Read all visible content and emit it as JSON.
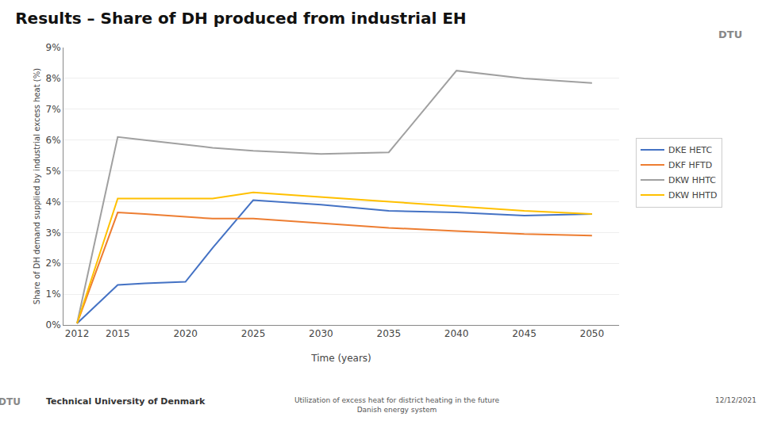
{
  "chart_data": {
    "type": "line",
    "title": "Results – Share of DH produced from industrial EH",
    "x_label": "Time (years)",
    "y_label": "Share of DH demand supplied by industrial excess heat (%)",
    "x": [
      2012,
      2015,
      2017,
      2020,
      2022,
      2025,
      2030,
      2035,
      2040,
      2045,
      2050
    ],
    "series": [
      {
        "name": "DKE HETC",
        "color": "#4472C4",
        "values": [
          0.05,
          1.3,
          1.35,
          1.4,
          2.5,
          4.05,
          3.9,
          3.7,
          3.65,
          3.55,
          3.6
        ]
      },
      {
        "name": "DKF HFTD",
        "color": "#ED7D31",
        "values": [
          0.05,
          3.65,
          3.6,
          3.5,
          3.45,
          3.45,
          3.3,
          3.15,
          3.05,
          2.95,
          2.9
        ]
      },
      {
        "name": "DKW HHTC",
        "color": "#A0A0A0",
        "values": [
          0.05,
          6.1,
          6.0,
          5.85,
          5.75,
          5.65,
          5.55,
          5.6,
          8.25,
          8.0,
          7.85
        ]
      },
      {
        "name": "DKW HHTD",
        "color": "#FFC000",
        "values": [
          0.05,
          4.1,
          4.1,
          4.1,
          4.1,
          4.3,
          4.15,
          4.0,
          3.85,
          3.7,
          3.6
        ]
      }
    ],
    "xlim": [
      2011,
      2052
    ],
    "xticks": [
      2012,
      2015,
      2020,
      2025,
      2030,
      2035,
      2040,
      2045,
      2050
    ],
    "ylim": [
      0,
      9
    ],
    "yticks": [
      {
        "value": 0,
        "label": "0%"
      },
      {
        "value": 1,
        "label": "1%"
      },
      {
        "value": 2,
        "label": "2%"
      },
      {
        "value": 3,
        "label": "3%"
      },
      {
        "value": 4,
        "label": "4%"
      },
      {
        "value": 5,
        "label": "5%"
      },
      {
        "value": 6,
        "label": "6%"
      },
      {
        "value": 7,
        "label": "7%"
      },
      {
        "value": 8,
        "label": "8%"
      },
      {
        "value": 9,
        "label": "9%"
      }
    ],
    "grid": "y",
    "legend": "right",
    "annotations": [
      "DTU",
      "DTU",
      "Technical University of Denmark",
      "Utilization of excess heat for district heating in the future\nDanish energy system",
      "12/12/2021"
    ]
  }
}
